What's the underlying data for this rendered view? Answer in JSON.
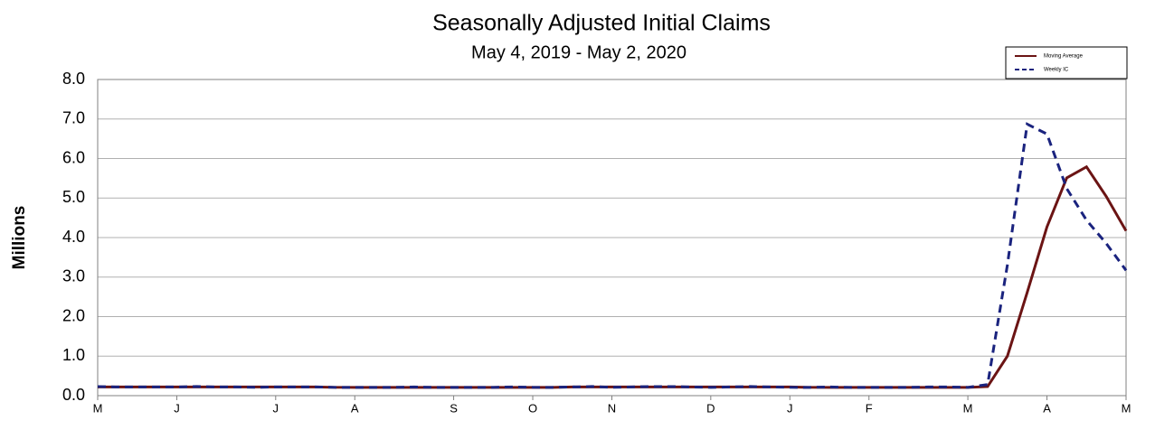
{
  "chart_data": {
    "type": "line",
    "title": "Seasonally Adjusted Initial Claims",
    "subtitle": "May 4, 2019 - May 2, 2020",
    "y_label": "Millions",
    "categories": [
      "M",
      null,
      null,
      null,
      "J",
      null,
      null,
      null,
      null,
      "J",
      null,
      null,
      null,
      "A",
      null,
      null,
      null,
      null,
      "S",
      null,
      null,
      null,
      "O",
      null,
      null,
      null,
      "N",
      null,
      null,
      null,
      null,
      "D",
      null,
      null,
      null,
      "J",
      null,
      null,
      null,
      "F",
      null,
      null,
      null,
      null,
      "M",
      null,
      null,
      null,
      "A",
      null,
      null,
      null,
      "M"
    ],
    "series": [
      {
        "name": "Moving Average",
        "color": "#6b1414",
        "dash": false,
        "values": [
          0.22,
          0.22,
          0.22,
          0.22,
          0.22,
          0.22,
          0.22,
          0.22,
          0.22,
          0.22,
          0.22,
          0.22,
          0.21,
          0.21,
          0.21,
          0.21,
          0.21,
          0.21,
          0.21,
          0.21,
          0.21,
          0.21,
          0.21,
          0.21,
          0.22,
          0.22,
          0.22,
          0.22,
          0.22,
          0.22,
          0.22,
          0.22,
          0.22,
          0.22,
          0.22,
          0.22,
          0.21,
          0.21,
          0.21,
          0.21,
          0.21,
          0.21,
          0.21,
          0.21,
          0.21,
          0.23,
          1.0,
          2.61,
          4.27,
          5.51,
          5.79,
          5.04,
          4.17
        ]
      },
      {
        "name": "Weekly IC",
        "color": "#1a237e",
        "dash": true,
        "values": [
          0.23,
          0.22,
          0.22,
          0.22,
          0.22,
          0.23,
          0.22,
          0.22,
          0.21,
          0.22,
          0.22,
          0.22,
          0.21,
          0.21,
          0.21,
          0.21,
          0.22,
          0.21,
          0.21,
          0.21,
          0.21,
          0.22,
          0.21,
          0.21,
          0.22,
          0.23,
          0.21,
          0.22,
          0.23,
          0.23,
          0.22,
          0.21,
          0.22,
          0.23,
          0.22,
          0.21,
          0.21,
          0.22,
          0.21,
          0.21,
          0.21,
          0.21,
          0.22,
          0.22,
          0.21,
          0.28,
          3.31,
          6.87,
          6.62,
          5.24,
          4.44,
          3.85,
          3.17
        ]
      }
    ],
    "ylim": [
      0,
      8
    ],
    "yticks": [
      {
        "value": 0,
        "label": "0.0"
      },
      {
        "value": 1,
        "label": "1.0"
      },
      {
        "value": 2,
        "label": "2.0"
      },
      {
        "value": 3,
        "label": "3.0"
      },
      {
        "value": 4,
        "label": "4.0"
      },
      {
        "value": 5,
        "label": "5.0"
      },
      {
        "value": 6,
        "label": "6.0"
      },
      {
        "value": 7,
        "label": "7.0"
      },
      {
        "value": 8,
        "label": "8.0"
      }
    ],
    "grid": true,
    "legend": "top-right"
  }
}
